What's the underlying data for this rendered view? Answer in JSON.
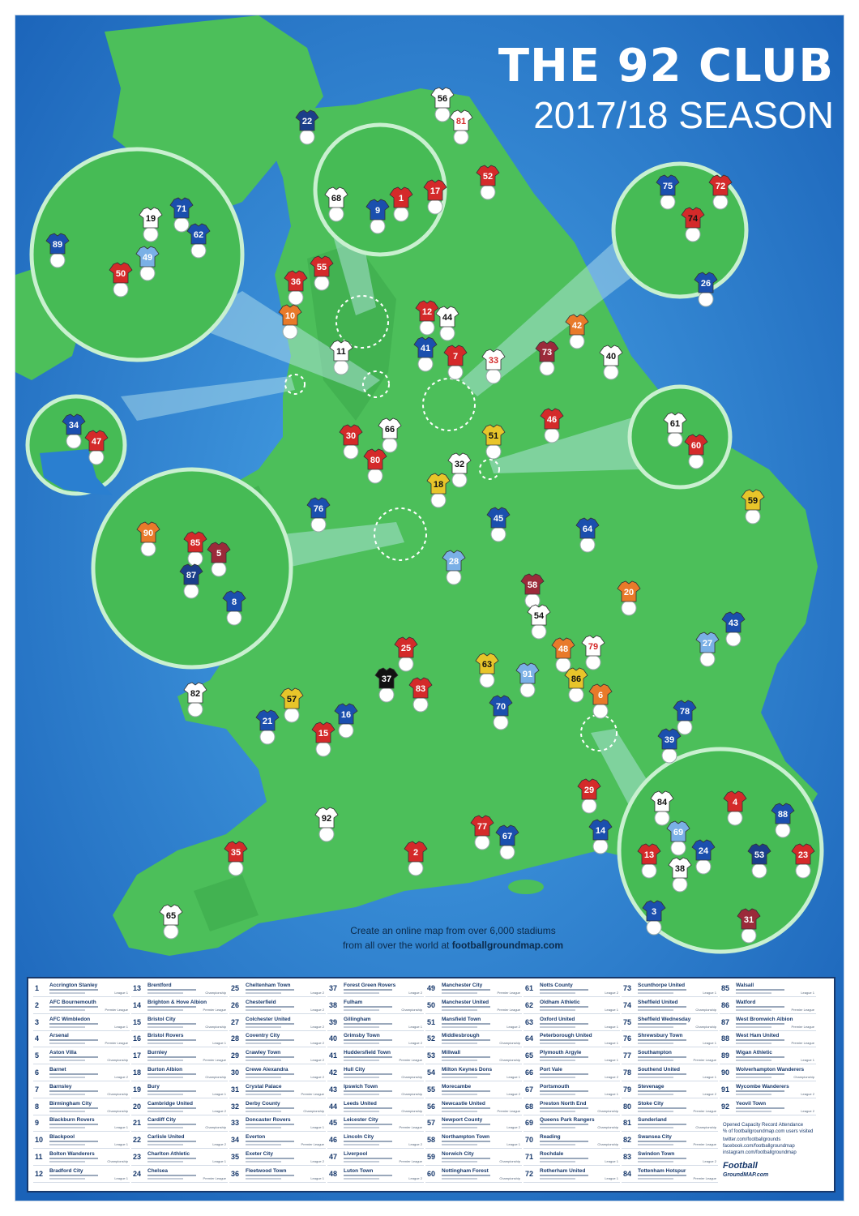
{
  "header": {
    "title": "THE 92 CLUB",
    "season": "2017/18 SEASON"
  },
  "promo": {
    "line1": "Create an online map from over 6,000 stadiums",
    "line2_prefix": "from all over the world at ",
    "line2_link": "footballgroundmap.com"
  },
  "colors": {
    "sea": "#2a7fd0",
    "land": "#4cbf5a",
    "land_dark": "#3aa84a",
    "zoom_fill": "#46bb55",
    "panel_border": "#17386b"
  },
  "map": {
    "markers": [
      {
        "n": "56",
        "c": "#ffffff",
        "k": "#111111"
      },
      {
        "n": "81",
        "c": "#ffffff",
        "k": "#d42a2a"
      },
      {
        "n": "22",
        "c": "#1b3e8a",
        "k": "#ffffff"
      },
      {
        "n": "52",
        "c": "#d42a2a",
        "k": "#ffffff"
      },
      {
        "n": "68",
        "c": "#ffffff",
        "k": "#111111"
      },
      {
        "n": "9",
        "c": "#1b4fae",
        "k": "#ffffff"
      },
      {
        "n": "1",
        "c": "#d42a2a",
        "k": "#ffffff"
      },
      {
        "n": "17",
        "c": "#d42a2a",
        "k": "#ffffff"
      },
      {
        "n": "75",
        "c": "#1b4fae",
        "k": "#ffffff"
      },
      {
        "n": "72",
        "c": "#d42a2a",
        "k": "#ffffff"
      },
      {
        "n": "74",
        "c": "#d42a2a",
        "k": "#111111"
      },
      {
        "n": "26",
        "c": "#1b4fae",
        "k": "#ffffff"
      },
      {
        "n": "19",
        "c": "#ffffff",
        "k": "#111111"
      },
      {
        "n": "71",
        "c": "#1b4fae",
        "k": "#ffffff"
      },
      {
        "n": "62",
        "c": "#1b4fae",
        "k": "#ffffff"
      },
      {
        "n": "89",
        "c": "#1b4fae",
        "k": "#ffffff"
      },
      {
        "n": "49",
        "c": "#7ab0e6",
        "k": "#ffffff"
      },
      {
        "n": "50",
        "c": "#d42a2a",
        "k": "#ffffff"
      },
      {
        "n": "55",
        "c": "#d42a2a",
        "k": "#ffffff"
      },
      {
        "n": "36",
        "c": "#d42a2a",
        "k": "#ffffff"
      },
      {
        "n": "10",
        "c": "#e87a2a",
        "k": "#ffffff"
      },
      {
        "n": "12",
        "c": "#d42a2a",
        "k": "#ffffff"
      },
      {
        "n": "44",
        "c": "#ffffff",
        "k": "#111111"
      },
      {
        "n": "42",
        "c": "#e87a2a",
        "k": "#ffffff"
      },
      {
        "n": "11",
        "c": "#ffffff",
        "k": "#111111"
      },
      {
        "n": "41",
        "c": "#1b4fae",
        "k": "#ffffff"
      },
      {
        "n": "7",
        "c": "#d42a2a",
        "k": "#ffffff"
      },
      {
        "n": "33",
        "c": "#ffffff",
        "k": "#d42a2a"
      },
      {
        "n": "73",
        "c": "#9b2a3a",
        "k": "#ffffff"
      },
      {
        "n": "40",
        "c": "#ffffff",
        "k": "#111111"
      },
      {
        "n": "34",
        "c": "#1b4fae",
        "k": "#ffffff"
      },
      {
        "n": "47",
        "c": "#d42a2a",
        "k": "#ffffff"
      },
      {
        "n": "30",
        "c": "#d42a2a",
        "k": "#ffffff"
      },
      {
        "n": "66",
        "c": "#ffffff",
        "k": "#111111"
      },
      {
        "n": "46",
        "c": "#d42a2a",
        "k": "#ffffff"
      },
      {
        "n": "51",
        "c": "#e8c52a",
        "k": "#111111"
      },
      {
        "n": "61",
        "c": "#ffffff",
        "k": "#111111"
      },
      {
        "n": "60",
        "c": "#d42a2a",
        "k": "#ffffff"
      },
      {
        "n": "80",
        "c": "#d42a2a",
        "k": "#ffffff"
      },
      {
        "n": "32",
        "c": "#ffffff",
        "k": "#111111"
      },
      {
        "n": "18",
        "c": "#e8c52a",
        "k": "#111111"
      },
      {
        "n": "59",
        "c": "#e8c52a",
        "k": "#111111"
      },
      {
        "n": "76",
        "c": "#1b4fae",
        "k": "#ffffff"
      },
      {
        "n": "45",
        "c": "#1b4fae",
        "k": "#ffffff"
      },
      {
        "n": "64",
        "c": "#1b4fae",
        "k": "#ffffff"
      },
      {
        "n": "90",
        "c": "#e87a2a",
        "k": "#ffffff"
      },
      {
        "n": "85",
        "c": "#d42a2a",
        "k": "#ffffff"
      },
      {
        "n": "5",
        "c": "#9b2a3a",
        "k": "#ffffff"
      },
      {
        "n": "87",
        "c": "#1b3e8a",
        "k": "#ffffff"
      },
      {
        "n": "8",
        "c": "#1b4fae",
        "k": "#ffffff"
      },
      {
        "n": "28",
        "c": "#7ab0e6",
        "k": "#ffffff"
      },
      {
        "n": "58",
        "c": "#9b2a3a",
        "k": "#ffffff"
      },
      {
        "n": "20",
        "c": "#e87a2a",
        "k": "#ffffff"
      },
      {
        "n": "54",
        "c": "#ffffff",
        "k": "#111111"
      },
      {
        "n": "43",
        "c": "#1b4fae",
        "k": "#ffffff"
      },
      {
        "n": "27",
        "c": "#7ab0e6",
        "k": "#ffffff"
      },
      {
        "n": "25",
        "c": "#d42a2a",
        "k": "#ffffff"
      },
      {
        "n": "48",
        "c": "#e87a2a",
        "k": "#ffffff"
      },
      {
        "n": "79",
        "c": "#ffffff",
        "k": "#d42a2a"
      },
      {
        "n": "63",
        "c": "#e8c52a",
        "k": "#111111"
      },
      {
        "n": "91",
        "c": "#7ab0e6",
        "k": "#ffffff"
      },
      {
        "n": "86",
        "c": "#e8c52a",
        "k": "#111111"
      },
      {
        "n": "37",
        "c": "#111111",
        "k": "#ffffff"
      },
      {
        "n": "83",
        "c": "#d42a2a",
        "k": "#ffffff"
      },
      {
        "n": "6",
        "c": "#e87a2a",
        "k": "#ffffff"
      },
      {
        "n": "82",
        "c": "#ffffff",
        "k": "#111111"
      },
      {
        "n": "57",
        "c": "#e8c52a",
        "k": "#111111"
      },
      {
        "n": "70",
        "c": "#1b4fae",
        "k": "#ffffff"
      },
      {
        "n": "78",
        "c": "#1b4fae",
        "k": "#ffffff"
      },
      {
        "n": "21",
        "c": "#1b4fae",
        "k": "#ffffff"
      },
      {
        "n": "16",
        "c": "#1b4fae",
        "k": "#ffffff"
      },
      {
        "n": "15",
        "c": "#d42a2a",
        "k": "#ffffff"
      },
      {
        "n": "39",
        "c": "#1b4fae",
        "k": "#ffffff"
      },
      {
        "n": "29",
        "c": "#d42a2a",
        "k": "#ffffff"
      },
      {
        "n": "84",
        "c": "#ffffff",
        "k": "#111111"
      },
      {
        "n": "4",
        "c": "#d42a2a",
        "k": "#ffffff"
      },
      {
        "n": "88",
        "c": "#1b4fae",
        "k": "#ffffff"
      },
      {
        "n": "69",
        "c": "#7ab0e6",
        "k": "#ffffff"
      },
      {
        "n": "92",
        "c": "#ffffff",
        "k": "#111111"
      },
      {
        "n": "77",
        "c": "#d42a2a",
        "k": "#ffffff"
      },
      {
        "n": "67",
        "c": "#1b4fae",
        "k": "#ffffff"
      },
      {
        "n": "14",
        "c": "#1b4fae",
        "k": "#ffffff"
      },
      {
        "n": "13",
        "c": "#d42a2a",
        "k": "#ffffff"
      },
      {
        "n": "24",
        "c": "#1b4fae",
        "k": "#ffffff"
      },
      {
        "n": "53",
        "c": "#1b3e8a",
        "k": "#ffffff"
      },
      {
        "n": "23",
        "c": "#d42a2a",
        "k": "#ffffff"
      },
      {
        "n": "38",
        "c": "#ffffff",
        "k": "#111111"
      },
      {
        "n": "35",
        "c": "#d42a2a",
        "k": "#ffffff"
      },
      {
        "n": "2",
        "c": "#d42a2a",
        "k": "#ffffff"
      },
      {
        "n": "3",
        "c": "#1b4fae",
        "k": "#ffffff"
      },
      {
        "n": "31",
        "c": "#9b2a3a",
        "k": "#ffffff"
      },
      {
        "n": "65",
        "c": "#ffffff",
        "k": "#111111"
      }
    ]
  },
  "clubs": [
    {
      "n": "1",
      "name": "Accrington Stanley",
      "league": "League 1"
    },
    {
      "n": "2",
      "name": "AFC Bournemouth",
      "league": "Premier League"
    },
    {
      "n": "3",
      "name": "AFC Wimbledon",
      "league": "League 1"
    },
    {
      "n": "4",
      "name": "Arsenal",
      "league": "Premier League"
    },
    {
      "n": "5",
      "name": "Aston Villa",
      "league": "Championship"
    },
    {
      "n": "6",
      "name": "Barnet",
      "league": "League 2"
    },
    {
      "n": "7",
      "name": "Barnsley",
      "league": "Championship"
    },
    {
      "n": "8",
      "name": "Birmingham City",
      "league": "Championship"
    },
    {
      "n": "9",
      "name": "Blackburn Rovers",
      "league": "League 1"
    },
    {
      "n": "10",
      "name": "Blackpool",
      "league": "League 1"
    },
    {
      "n": "11",
      "name": "Bolton Wanderers",
      "league": "Championship"
    },
    {
      "n": "12",
      "name": "Bradford City",
      "league": "League 1"
    },
    {
      "n": "13",
      "name": "Brentford",
      "league": "Championship"
    },
    {
      "n": "14",
      "name": "Brighton & Hove Albion",
      "league": "Premier League"
    },
    {
      "n": "15",
      "name": "Bristol City",
      "league": "Championship"
    },
    {
      "n": "16",
      "name": "Bristol Rovers",
      "league": "League 1"
    },
    {
      "n": "17",
      "name": "Burnley",
      "league": "Premier League"
    },
    {
      "n": "18",
      "name": "Burton Albion",
      "league": "Championship"
    },
    {
      "n": "19",
      "name": "Bury",
      "league": "League 1"
    },
    {
      "n": "20",
      "name": "Cambridge United",
      "league": "League 2"
    },
    {
      "n": "21",
      "name": "Cardiff City",
      "league": "Championship"
    },
    {
      "n": "22",
      "name": "Carlisle United",
      "league": "League 2"
    },
    {
      "n": "23",
      "name": "Charlton Athletic",
      "league": "League 1"
    },
    {
      "n": "24",
      "name": "Chelsea",
      "league": "Premier League"
    },
    {
      "n": "25",
      "name": "Cheltenham Town",
      "league": "League 2"
    },
    {
      "n": "26",
      "name": "Chesterfield",
      "league": "League 2"
    },
    {
      "n": "27",
      "name": "Colchester United",
      "league": "League 2"
    },
    {
      "n": "28",
      "name": "Coventry City",
      "league": "League 2"
    },
    {
      "n": "29",
      "name": "Crawley Town",
      "league": "League 2"
    },
    {
      "n": "30",
      "name": "Crewe Alexandra",
      "league": "League 2"
    },
    {
      "n": "31",
      "name": "Crystal Palace",
      "league": "Premier League"
    },
    {
      "n": "32",
      "name": "Derby County",
      "league": "Championship"
    },
    {
      "n": "33",
      "name": "Doncaster Rovers",
      "league": "League 1"
    },
    {
      "n": "34",
      "name": "Everton",
      "league": "Premier League"
    },
    {
      "n": "35",
      "name": "Exeter City",
      "league": "League 2"
    },
    {
      "n": "36",
      "name": "Fleetwood Town",
      "league": "League 1"
    },
    {
      "n": "37",
      "name": "Forest Green Rovers",
      "league": "League 2"
    },
    {
      "n": "38",
      "name": "Fulham",
      "league": "Championship"
    },
    {
      "n": "39",
      "name": "Gillingham",
      "league": "League 1"
    },
    {
      "n": "40",
      "name": "Grimsby Town",
      "league": "League 2"
    },
    {
      "n": "41",
      "name": "Huddersfield Town",
      "league": "Premier League"
    },
    {
      "n": "42",
      "name": "Hull City",
      "league": "Championship"
    },
    {
      "n": "43",
      "name": "Ipswich Town",
      "league": "Championship"
    },
    {
      "n": "44",
      "name": "Leeds United",
      "league": "Championship"
    },
    {
      "n": "45",
      "name": "Leicester City",
      "league": "Premier League"
    },
    {
      "n": "46",
      "name": "Lincoln City",
      "league": "League 2"
    },
    {
      "n": "47",
      "name": "Liverpool",
      "league": "Premier League"
    },
    {
      "n": "48",
      "name": "Luton Town",
      "league": "League 2"
    },
    {
      "n": "49",
      "name": "Manchester City",
      "league": "Premier League"
    },
    {
      "n": "50",
      "name": "Manchester United",
      "league": "Premier League"
    },
    {
      "n": "51",
      "name": "Mansfield Town",
      "league": "League 2"
    },
    {
      "n": "52",
      "name": "Middlesbrough",
      "league": "Championship"
    },
    {
      "n": "53",
      "name": "Millwall",
      "league": "Championship"
    },
    {
      "n": "54",
      "name": "Milton Keynes Dons",
      "league": "League 1"
    },
    {
      "n": "55",
      "name": "Morecambe",
      "league": "League 2"
    },
    {
      "n": "56",
      "name": "Newcastle United",
      "league": "Premier League"
    },
    {
      "n": "57",
      "name": "Newport County",
      "league": "League 2"
    },
    {
      "n": "58",
      "name": "Northampton Town",
      "league": "League 1"
    },
    {
      "n": "59",
      "name": "Norwich City",
      "league": "Championship"
    },
    {
      "n": "60",
      "name": "Nottingham Forest",
      "league": "Championship"
    },
    {
      "n": "61",
      "name": "Notts County",
      "league": "League 2"
    },
    {
      "n": "62",
      "name": "Oldham Athletic",
      "league": "League 1"
    },
    {
      "n": "63",
      "name": "Oxford United",
      "league": "League 1"
    },
    {
      "n": "64",
      "name": "Peterborough United",
      "league": "League 1"
    },
    {
      "n": "65",
      "name": "Plymouth Argyle",
      "league": "League 1"
    },
    {
      "n": "66",
      "name": "Port Vale",
      "league": "League 2"
    },
    {
      "n": "67",
      "name": "Portsmouth",
      "league": "League 1"
    },
    {
      "n": "68",
      "name": "Preston North End",
      "league": "Championship"
    },
    {
      "n": "69",
      "name": "Queens Park Rangers",
      "league": "Championship"
    },
    {
      "n": "70",
      "name": "Reading",
      "league": "Championship"
    },
    {
      "n": "71",
      "name": "Rochdale",
      "league": "League 1"
    },
    {
      "n": "72",
      "name": "Rotherham United",
      "league": "League 1"
    },
    {
      "n": "73",
      "name": "Scunthorpe United",
      "league": "League 1"
    },
    {
      "n": "74",
      "name": "Sheffield United",
      "league": "Championship"
    },
    {
      "n": "75",
      "name": "Sheffield Wednesday",
      "league": "Championship"
    },
    {
      "n": "76",
      "name": "Shrewsbury Town",
      "league": "League 1"
    },
    {
      "n": "77",
      "name": "Southampton",
      "league": "Premier League"
    },
    {
      "n": "78",
      "name": "Southend United",
      "league": "League 1"
    },
    {
      "n": "79",
      "name": "Stevenage",
      "league": "League 2"
    },
    {
      "n": "80",
      "name": "Stoke City",
      "league": "Premier League"
    },
    {
      "n": "81",
      "name": "Sunderland",
      "league": "Championship"
    },
    {
      "n": "82",
      "name": "Swansea City",
      "league": "Premier League"
    },
    {
      "n": "83",
      "name": "Swindon Town",
      "league": "League 2"
    },
    {
      "n": "84",
      "name": "Tottenham Hotspur",
      "league": "Premier League"
    },
    {
      "n": "85",
      "name": "Walsall",
      "league": "League 1"
    },
    {
      "n": "86",
      "name": "Watford",
      "league": "Premier League"
    },
    {
      "n": "87",
      "name": "West Bromwich Albion",
      "league": "Premier League"
    },
    {
      "n": "88",
      "name": "West Ham United",
      "league": "Premier League"
    },
    {
      "n": "89",
      "name": "Wigan Athletic",
      "league": "League 1"
    },
    {
      "n": "90",
      "name": "Wolverhampton Wanderers",
      "league": "Championship"
    },
    {
      "n": "91",
      "name": "Wycombe Wanderers",
      "league": "League 2"
    },
    {
      "n": "92",
      "name": "Yeovil Town",
      "league": "League 2"
    }
  ],
  "footer": {
    "legend_line1": "Opened  Capacity  Record Attendance",
    "legend_line2": "% of footballgroundmap.com users visited",
    "twitter": "twitter.com/footballgrounds",
    "facebook": "facebook.com/footballgroundmap",
    "instagram": "instagram.com/footballgroundmap",
    "logo_line1": "Football",
    "logo_line2": "GroundMAP.com"
  }
}
